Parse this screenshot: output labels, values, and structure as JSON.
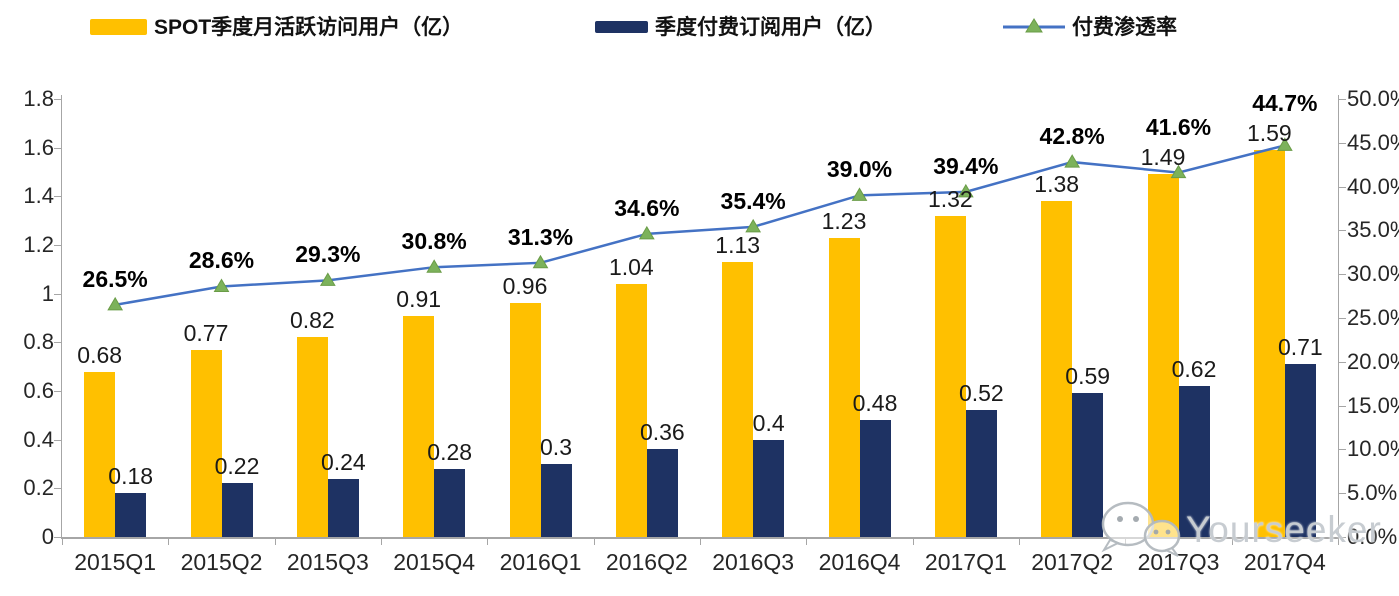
{
  "legend": {
    "items": [
      {
        "label": "SPOT季度月活跃访问用户（亿）",
        "swatch": "bar",
        "color": "#FFC000"
      },
      {
        "label": "季度付费订阅用户（亿）",
        "swatch": "bar",
        "color": "#1E3263"
      },
      {
        "label": "付费渗透率",
        "swatch": "line-triangle",
        "color": "#4472C4",
        "marker_color": "#7CB25B"
      }
    ]
  },
  "chart_data": {
    "type": "combo-bar-line",
    "categories": [
      "2015Q1",
      "2015Q2",
      "2015Q3",
      "2015Q4",
      "2016Q1",
      "2016Q2",
      "2016Q3",
      "2016Q4",
      "2017Q1",
      "2017Q2",
      "2017Q3",
      "2017Q4"
    ],
    "series": [
      {
        "name": "SPOT季度月活跃访问用户（亿）",
        "type": "bar",
        "axis": "left",
        "color": "#FFC000",
        "values": [
          0.68,
          0.77,
          0.82,
          0.91,
          0.96,
          1.04,
          1.13,
          1.23,
          1.32,
          1.38,
          1.49,
          1.59
        ],
        "labels": [
          "0.68",
          "0.77",
          "0.82",
          "0.91",
          "0.96",
          "1.04",
          "1.13",
          "1.23",
          "1.32",
          "1.38",
          "1.49",
          "1.59"
        ]
      },
      {
        "name": "季度付费订阅用户（亿）",
        "type": "bar",
        "axis": "left",
        "color": "#1E3263",
        "values": [
          0.18,
          0.22,
          0.24,
          0.28,
          0.3,
          0.36,
          0.4,
          0.48,
          0.52,
          0.59,
          0.62,
          0.71
        ],
        "labels": [
          "0.18",
          "0.22",
          "0.24",
          "0.28",
          "0.3",
          "0.36",
          "0.4",
          "0.48",
          "0.52",
          "0.59",
          "0.62",
          "0.71"
        ]
      },
      {
        "name": "付费渗透率",
        "type": "line",
        "axis": "right",
        "color": "#4472C4",
        "marker": "triangle",
        "marker_color": "#7CB25B",
        "values": [
          26.5,
          28.6,
          29.3,
          30.8,
          31.3,
          34.6,
          35.4,
          39.0,
          39.4,
          42.8,
          41.6,
          44.7
        ],
        "labels": [
          "26.5%",
          "28.6%",
          "29.3%",
          "30.8%",
          "31.3%",
          "34.6%",
          "35.4%",
          "39.0%",
          "39.4%",
          "42.8%",
          "41.6%",
          "44.7%"
        ]
      }
    ],
    "left_axis": {
      "min": 0,
      "max": 1.8,
      "ticks": [
        "1.8",
        "1.6",
        "1.4",
        "1.2",
        "1",
        "0.8",
        "0.6",
        "0.4",
        "0.2",
        "0"
      ]
    },
    "right_axis": {
      "min": 0,
      "max": 50,
      "ticks": [
        "50.0%",
        "45.0%",
        "40.0%",
        "35.0%",
        "30.0%",
        "25.0%",
        "20.0%",
        "15.0%",
        "10.0%",
        "5.0%",
        "0.0%"
      ]
    },
    "grid": false,
    "legend_position": "top"
  },
  "watermark": {
    "text": "Yourseeker",
    "icon": "wechat-icon"
  }
}
